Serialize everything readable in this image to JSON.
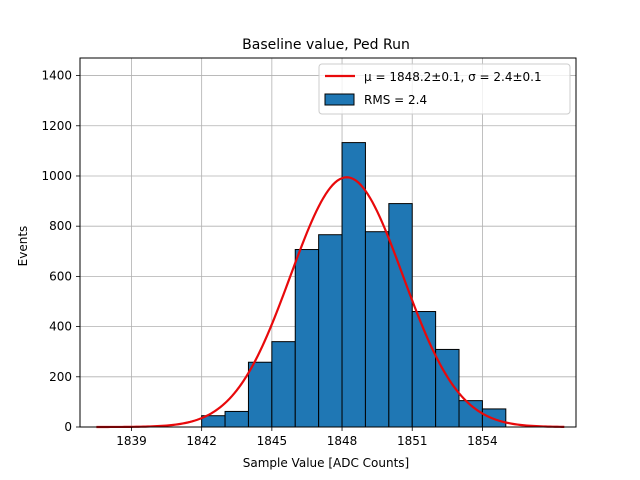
{
  "chart_data": {
    "type": "bar",
    "title": "Baseline value, Ped Run",
    "xlabel": "Sample Value [ADC Counts]",
    "ylabel": "Events",
    "xlim": [
      1836.8,
      1858.0
    ],
    "ylim": [
      0,
      1470
    ],
    "xticks": [
      1839,
      1842,
      1845,
      1848,
      1851,
      1854
    ],
    "yticks": [
      0,
      200,
      400,
      600,
      800,
      1000,
      1200,
      1400
    ],
    "grid": true,
    "legend_position": "top-right",
    "histogram": {
      "name": "RMS = 2.4",
      "bin_width": 1,
      "bins": [
        {
          "left": 1842,
          "value": 45
        },
        {
          "left": 1843,
          "value": 62
        },
        {
          "left": 1844,
          "value": 258
        },
        {
          "left": 1845,
          "value": 340
        },
        {
          "left": 1846,
          "value": 707
        },
        {
          "left": 1847,
          "value": 766
        },
        {
          "left": 1848,
          "value": 1133
        },
        {
          "left": 1849,
          "value": 778
        },
        {
          "left": 1850,
          "value": 890
        },
        {
          "left": 1851,
          "value": 460
        },
        {
          "left": 1852,
          "value": 309
        },
        {
          "left": 1853,
          "value": 105
        },
        {
          "left": 1854,
          "value": 72
        }
      ]
    },
    "fit": {
      "name": "μ = 1848.2±0.1, σ = 2.4±0.1",
      "mu": 1848.2,
      "sigma": 2.4,
      "amplitude": 995,
      "x_range": [
        1837.5,
        1857.5
      ]
    },
    "colors": {
      "bar_fill": "#1f77b4",
      "bar_edge": "#000000",
      "fit_line": "#e8090b",
      "grid": "#b0b0b0"
    }
  }
}
